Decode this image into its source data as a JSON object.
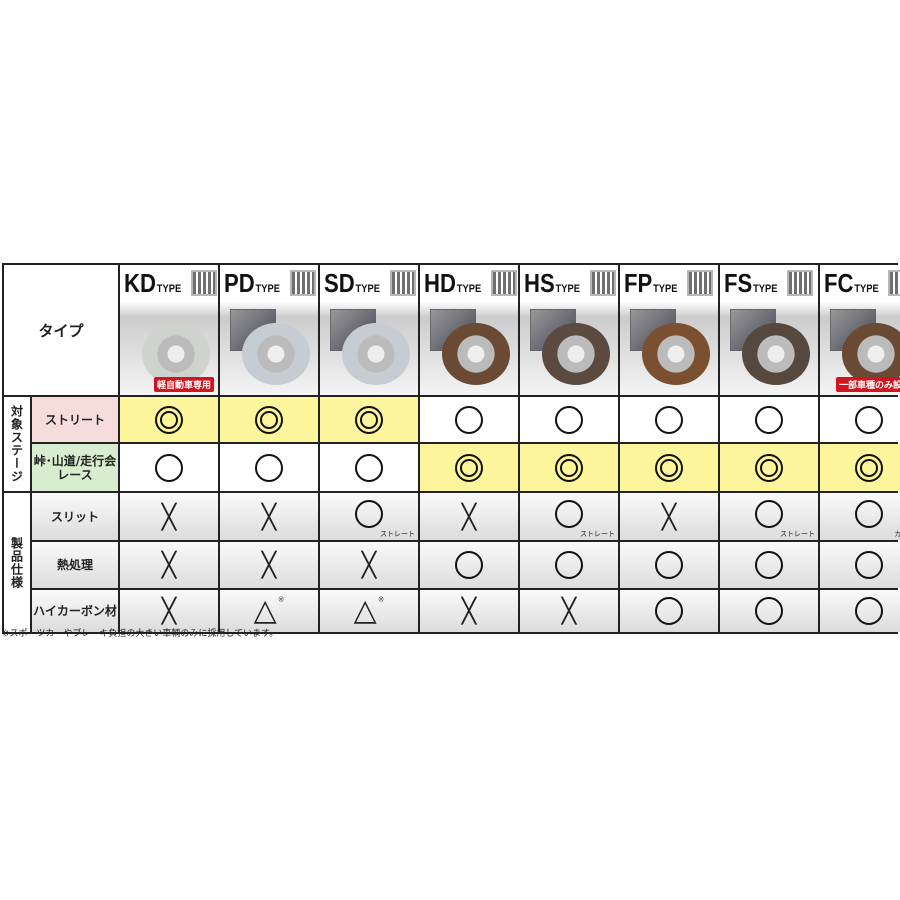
{
  "corner_label": "タイプ",
  "types": [
    {
      "code": "KD",
      "suffix": "TYPE",
      "tag": "軽自動車専用",
      "disc_color": "#cfd3d0"
    },
    {
      "code": "PD",
      "suffix": "TYPE",
      "tag": "",
      "disc_color": "#c6ccd2"
    },
    {
      "code": "SD",
      "suffix": "TYPE",
      "tag": "",
      "disc_color": "#c6ccd2"
    },
    {
      "code": "HD",
      "suffix": "TYPE",
      "tag": "",
      "disc_color": "#6b4a35"
    },
    {
      "code": "HS",
      "suffix": "TYPE",
      "tag": "",
      "disc_color": "#5a4a40"
    },
    {
      "code": "FP",
      "suffix": "TYPE",
      "tag": "",
      "disc_color": "#7a5030"
    },
    {
      "code": "FS",
      "suffix": "TYPE",
      "tag": "",
      "disc_color": "#55483f"
    },
    {
      "code": "FC",
      "suffix": "TYPE",
      "tag": "一部車種のみ設定",
      "disc_color": "#6b4a35"
    }
  ],
  "groups": {
    "stage": "対象ステージ",
    "spec": "製品仕様"
  },
  "rows": [
    {
      "label": "ストリート",
      "style": "pink",
      "marks": [
        "double",
        "double",
        "double",
        "circle",
        "circle",
        "circle",
        "circle",
        "circle"
      ],
      "highlight": [
        1,
        1,
        1,
        0,
        0,
        0,
        0,
        0
      ],
      "subs": [
        "",
        "",
        "",
        "",
        "",
        "",
        "",
        ""
      ]
    },
    {
      "label": "峠･山道/走行会\nレース",
      "style": "green",
      "marks": [
        "circle",
        "circle",
        "circle",
        "double",
        "double",
        "double",
        "double",
        "double"
      ],
      "highlight": [
        0,
        0,
        0,
        1,
        1,
        1,
        1,
        1
      ],
      "subs": [
        "",
        "",
        "",
        "",
        "",
        "",
        "",
        ""
      ]
    },
    {
      "label": "スリット",
      "style": "gray",
      "marks": [
        "cross",
        "cross",
        "circle",
        "cross",
        "circle",
        "cross",
        "circle",
        "circle"
      ],
      "highlight": [
        0,
        0,
        0,
        0,
        0,
        0,
        0,
        0
      ],
      "subs": [
        "",
        "",
        "ストレート",
        "",
        "ストレート",
        "",
        "ストレート",
        "カーブ"
      ]
    },
    {
      "label": "熱処理",
      "style": "gray",
      "marks": [
        "cross",
        "cross",
        "cross",
        "circle",
        "circle",
        "circle",
        "circle",
        "circle"
      ],
      "highlight": [
        0,
        0,
        0,
        0,
        0,
        0,
        0,
        0
      ],
      "subs": [
        "",
        "",
        "",
        "",
        "",
        "",
        "",
        ""
      ]
    },
    {
      "label": "ハイカーボン材",
      "style": "gray",
      "marks": [
        "cross",
        "triangle",
        "triangle",
        "cross",
        "cross",
        "circle",
        "circle",
        "circle"
      ],
      "highlight": [
        0,
        0,
        0,
        0,
        0,
        0,
        0,
        0
      ],
      "subs": [
        "",
        "",
        "",
        "",
        "",
        "",
        "",
        ""
      ]
    }
  ],
  "footnote_mark": "※",
  "footnote": "※スポーツカーやブレーキ負担の大きい車輌のみに採用しています。",
  "colors": {
    "highlight": "#fdf59b",
    "tag": "#d2141e"
  }
}
